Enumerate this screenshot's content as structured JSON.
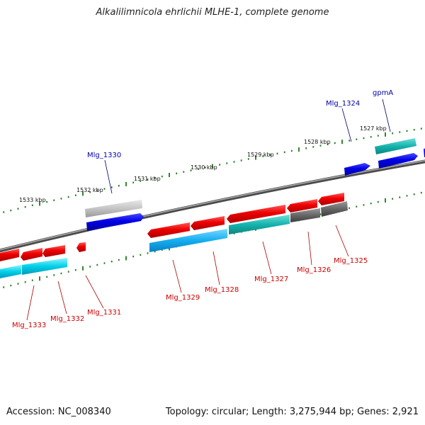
{
  "title": "Alkalilimnicola ehrlichii MLHE-1, complete genome",
  "footer": {
    "accession": "Accession: NC_008340",
    "topology": "Topology: circular; Length: 3,275,944 bp; Genes: 2,921"
  },
  "colors": {
    "backbone": "#777777",
    "ticks": "#1b7a1b",
    "forward_gene": "#0000e6",
    "forward_gene_light": "#c4c4c4",
    "forward_cds_teal": "#1ab3ad",
    "reverse_gene": "#e60000",
    "reverse_cds_cyan": "#00c8e0",
    "reverse_cds_teal": "#11aaa5",
    "reverse_cds_grey": "#666666",
    "forward_label": "#0000aa",
    "reverse_label": "#cc0000"
  },
  "kbp_labels": [
    "1527 kbp",
    "1528 kbp",
    "1529 kbp",
    "1530 kbp",
    "1531 kbp",
    "1532 kbp",
    "1533 kbp"
  ],
  "forward_labels": [
    "gpmA",
    "Mlg_1324",
    "Mlg_1330"
  ],
  "reverse_labels": [
    "Mlg_1325",
    "Mlg_1326",
    "Mlg_1327",
    "Mlg_1328",
    "Mlg_1329",
    "Mlg_1331",
    "Mlg_1332",
    "Mlg_1333"
  ]
}
